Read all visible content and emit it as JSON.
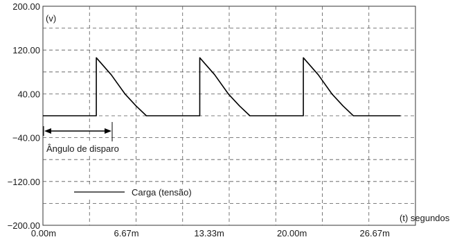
{
  "chart_data": {
    "type": "line",
    "title": "",
    "ylabel": "(v)",
    "xlabel": "(t) segundos",
    "ylim": [
      -200,
      200
    ],
    "xlim": [
      0,
      30
    ],
    "y_tick_labels": [
      "200.00",
      "120.00",
      "40.00",
      "-40.00",
      "-120.00",
      "-200.00"
    ],
    "x_tick_labels": [
      "0.00m",
      "6.67m",
      "13.33m",
      "20.00m",
      "26.67m"
    ],
    "grid": true,
    "grid_style": "dashed",
    "legend_placement": "bottom-left",
    "series": [
      {
        "name": "Carga (tensão)",
        "color": "#000000",
        "x": [
          0,
          4.3,
          4.3,
          5.5,
          6.6,
          7.5,
          8.33,
          8.33,
          12.63,
          12.63,
          13.83,
          14.93,
          15.83,
          16.67,
          16.67,
          20.97,
          20.97,
          22.17,
          23.27,
          24.17,
          25.0,
          28.8
        ],
        "y": [
          0,
          0,
          106,
          75,
          40,
          18,
          0,
          0,
          0,
          106,
          75,
          40,
          18,
          0,
          0,
          0,
          106,
          75,
          40,
          18,
          0,
          0
        ]
      }
    ],
    "annotations": [
      {
        "text": "Ângulo de disparo",
        "x_from": 0,
        "x_to": 4.3,
        "y": -32
      }
    ]
  }
}
